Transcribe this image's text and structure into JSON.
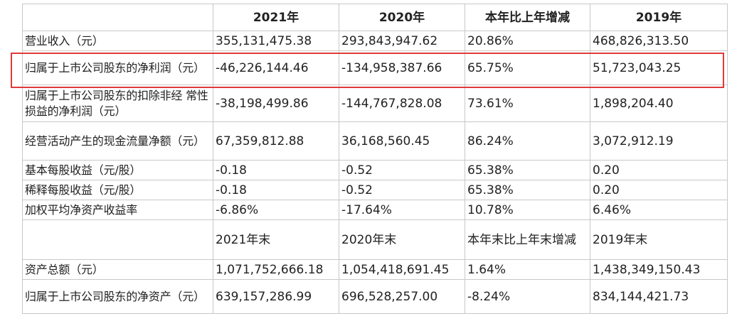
{
  "table": {
    "header": [
      "",
      "2021年",
      "2020年",
      "本年比上年增减",
      "2019年"
    ],
    "rows": [
      [
        "营业收入（元）",
        "355,131,475.38",
        "293,843,947.62",
        "20.86%",
        "468,826,313.50"
      ],
      [
        "归属于上市公司股东的净利润（元）",
        "-46,226,144.46",
        "-134,958,387.66",
        "65.75%",
        "51,723,043.25"
      ],
      [
        "归属于上市公司股东的扣除非经 常性损益的净利润（元）",
        "-38,198,499.86",
        "-144,767,828.08",
        "73.61%",
        "1,898,204.40"
      ],
      [
        "经营活动产生的现金流量净额（元）",
        "67,359,812.88",
        "36,168,560.45",
        "86.24%",
        "3,072,912.19"
      ],
      [
        "基本每股收益（元/股）",
        "-0.18",
        "-0.52",
        "65.38%",
        "0.20"
      ],
      [
        "稀释每股收益（元/股）",
        "-0.18",
        "-0.52",
        "65.38%",
        "0.20"
      ],
      [
        "加权平均净资产收益率",
        "-6.86%",
        "-17.64%",
        "10.78%",
        "6.46%"
      ],
      [
        "",
        "2021年末",
        "2020年末",
        "本年末比上年末增减",
        "2019年末"
      ],
      [
        "资产总额（元）",
        "1,071,752,666.18",
        "1,054,418,691.45",
        "1.64%",
        "1,438,349,150.43"
      ],
      [
        "归属于上市公司股东的净资产（元）",
        "639,157,286.99",
        "696,528,257.00",
        "-8.24%",
        "834,144,421.73"
      ]
    ]
  },
  "highlight": {
    "row": 1,
    "color": "#e03a3a"
  }
}
